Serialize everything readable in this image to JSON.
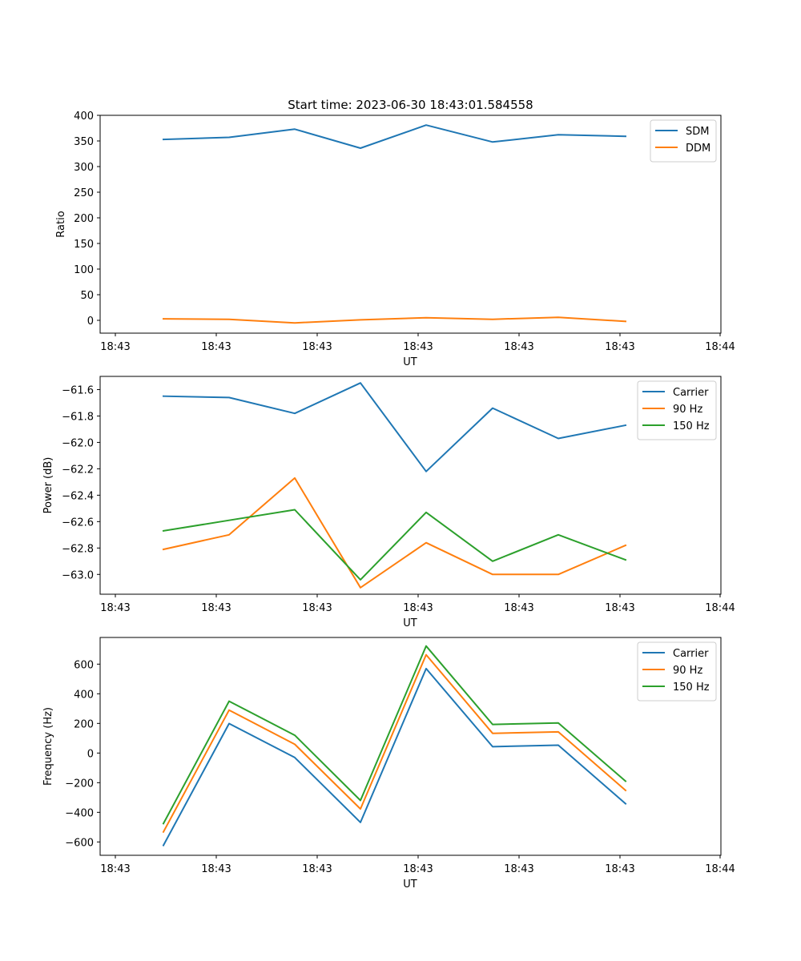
{
  "title": "Start time: 2023-06-30 18:43:01.584558",
  "chart_data": [
    {
      "type": "line",
      "xlabel": "UT",
      "ylabel": "Ratio",
      "x_tick_labels": [
        "18:43",
        "18:43",
        "18:43",
        "18:43",
        "18:43",
        "18:43",
        "18:43",
        "18:44"
      ],
      "ylim": [
        -25,
        400
      ],
      "yticks": [
        0,
        50,
        100,
        150,
        200,
        250,
        300,
        350,
        400
      ],
      "ytick_labels": [
        "0",
        "50",
        "100",
        "150",
        "200",
        "250",
        "300",
        "350",
        "400"
      ],
      "legend_position": "top-right",
      "series": [
        {
          "name": "SDM",
          "color": "#1f77b4",
          "values": [
            353,
            357,
            373,
            336,
            381,
            348,
            362,
            359
          ]
        },
        {
          "name": "DDM",
          "color": "#ff7f0e",
          "values": [
            3,
            2,
            -5,
            1,
            5,
            2,
            6,
            -2
          ]
        }
      ]
    },
    {
      "type": "line",
      "xlabel": "UT",
      "ylabel": "Power (dB)",
      "x_tick_labels": [
        "18:43",
        "18:43",
        "18:43",
        "18:43",
        "18:43",
        "18:43",
        "18:43",
        "18:44"
      ],
      "ylim": [
        -63.15,
        -61.5
      ],
      "yticks": [
        -61.6,
        -61.8,
        -62.0,
        -62.2,
        -62.4,
        -62.6,
        -62.8,
        -63.0
      ],
      "ytick_labels": [
        "−61.6",
        "−61.8",
        "−62.0",
        "−62.2",
        "−62.4",
        "−62.6",
        "−62.8",
        "−63.0"
      ],
      "legend_position": "top-right",
      "series": [
        {
          "name": "Carrier",
          "color": "#1f77b4",
          "values": [
            -61.65,
            -61.66,
            -61.78,
            -61.55,
            -62.22,
            -61.74,
            -61.97,
            -61.87
          ]
        },
        {
          "name": "90 Hz",
          "color": "#ff7f0e",
          "values": [
            -62.81,
            -62.7,
            -62.27,
            -63.1,
            -62.76,
            -63.0,
            -63.0,
            -62.78
          ]
        },
        {
          "name": "150 Hz",
          "color": "#2ca02c",
          "values": [
            -62.67,
            -62.59,
            -62.51,
            -63.04,
            -62.53,
            -62.9,
            -62.7,
            -62.89
          ]
        }
      ]
    },
    {
      "type": "line",
      "xlabel": "UT",
      "ylabel": "Frequency (Hz)",
      "x_tick_labels": [
        "18:43",
        "18:43",
        "18:43",
        "18:43",
        "18:43",
        "18:43",
        "18:43",
        "18:44"
      ],
      "ylim": [
        -690,
        780
      ],
      "yticks": [
        -600,
        -400,
        -200,
        0,
        200,
        400,
        600
      ],
      "ytick_labels": [
        "−600",
        "−400",
        "−200",
        "0",
        "200",
        "400",
        "600"
      ],
      "legend_position": "top-right",
      "series": [
        {
          "name": "Carrier",
          "color": "#1f77b4",
          "values": [
            -623,
            199,
            -30,
            -468,
            570,
            43,
            53,
            -342
          ]
        },
        {
          "name": "90 Hz",
          "color": "#ff7f0e",
          "values": [
            -532,
            290,
            59,
            -377,
            663,
            133,
            143,
            -252
          ]
        },
        {
          "name": "150 Hz",
          "color": "#2ca02c",
          "values": [
            -476,
            350,
            120,
            -320,
            722,
            193,
            203,
            -190
          ]
        }
      ]
    }
  ]
}
